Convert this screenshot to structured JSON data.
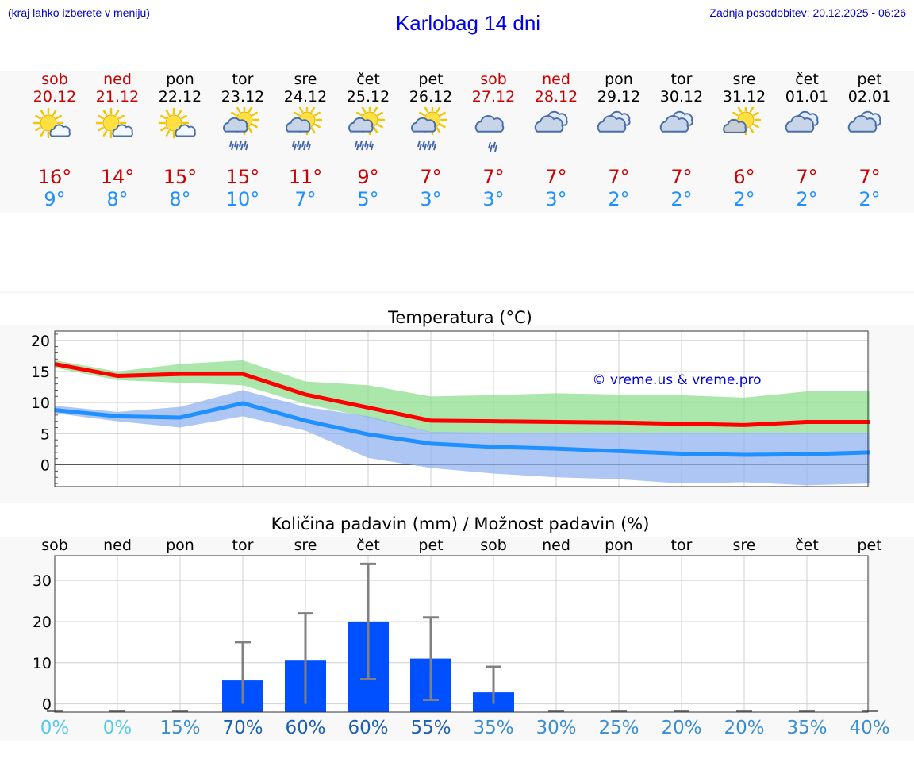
{
  "header": {
    "hint": "(kraj lahko izberete v meniju)",
    "title": "Karlobag 14 dni",
    "updated": "Zadnja posodobitev: 20.12.2025 - 06:26"
  },
  "days": [
    {
      "name": "sob",
      "date": "20.12",
      "weekend": true,
      "icon": "sun-cloud-icon",
      "tmax": "16°",
      "tmin": "9°"
    },
    {
      "name": "ned",
      "date": "21.12",
      "weekend": true,
      "icon": "sun-cloud-icon",
      "tmax": "14°",
      "tmin": "8°"
    },
    {
      "name": "pon",
      "date": "22.12",
      "weekend": false,
      "icon": "sun-cloud-icon",
      "tmax": "15°",
      "tmin": "8°"
    },
    {
      "name": "tor",
      "date": "23.12",
      "weekend": false,
      "icon": "sun-rain-icon",
      "tmax": "15°",
      "tmin": "10°"
    },
    {
      "name": "sre",
      "date": "24.12",
      "weekend": false,
      "icon": "sun-rain-icon",
      "tmax": "11°",
      "tmin": "7°"
    },
    {
      "name": "čet",
      "date": "25.12",
      "weekend": false,
      "icon": "sun-rain-icon",
      "tmax": "9°",
      "tmin": "5°"
    },
    {
      "name": "pet",
      "date": "26.12",
      "weekend": false,
      "icon": "sun-rain-icon",
      "tmax": "7°",
      "tmin": "3°"
    },
    {
      "name": "sob",
      "date": "27.12",
      "weekend": true,
      "icon": "cloud-drizzle-icon",
      "tmax": "7°",
      "tmin": "3°"
    },
    {
      "name": "ned",
      "date": "28.12",
      "weekend": true,
      "icon": "cloud-icon",
      "tmax": "7°",
      "tmin": "3°"
    },
    {
      "name": "pon",
      "date": "29.12",
      "weekend": false,
      "icon": "cloud-icon",
      "tmax": "7°",
      "tmin": "2°"
    },
    {
      "name": "tor",
      "date": "30.12",
      "weekend": false,
      "icon": "cloud-icon",
      "tmax": "7°",
      "tmin": "2°"
    },
    {
      "name": "sre",
      "date": "31.12",
      "weekend": false,
      "icon": "sun-cloud-grey-icon",
      "tmax": "6°",
      "tmin": "2°"
    },
    {
      "name": "čet",
      "date": "01.01",
      "weekend": false,
      "icon": "cloud-icon",
      "tmax": "7°",
      "tmin": "2°"
    },
    {
      "name": "pet",
      "date": "02.01",
      "weekend": false,
      "icon": "cloud-icon",
      "tmax": "7°",
      "tmin": "2°"
    }
  ],
  "colors": {
    "max_line": "#ff0000",
    "min_line": "#1e90ff",
    "max_band": "#8fdf8f",
    "min_band": "#8fb0f0",
    "bar": "#0050ff",
    "error": "#808080"
  },
  "chart_data": [
    {
      "type": "line",
      "title": "Temperatura (°C)",
      "watermark": "© vreme.us & vreme.pro",
      "ylim": [
        -3.5,
        21.5
      ],
      "yticks": [
        "0",
        "5",
        "10",
        "15",
        "20"
      ],
      "x": [
        0,
        1,
        2,
        3,
        4,
        5,
        6,
        7,
        8,
        9,
        10,
        11,
        12,
        13
      ],
      "series": [
        {
          "name": "max",
          "values": [
            16.2,
            14.3,
            14.6,
            14.6,
            11.3,
            9.2,
            7.1,
            7.0,
            6.9,
            6.8,
            6.6,
            6.4,
            6.9,
            6.9
          ],
          "band_low": [
            15.6,
            13.6,
            13.2,
            12.8,
            9.8,
            7.6,
            5.2,
            5.2,
            5.2,
            5.2,
            5.2,
            5.2,
            5.2,
            5.2
          ],
          "band_high": [
            16.8,
            15.0,
            16.2,
            16.8,
            13.4,
            12.8,
            11.0,
            11.2,
            11.5,
            11.3,
            11.2,
            10.8,
            11.8,
            11.8
          ]
        },
        {
          "name": "min",
          "values": [
            8.8,
            7.8,
            7.6,
            9.9,
            7.1,
            4.9,
            3.4,
            2.9,
            2.6,
            2.2,
            1.8,
            1.6,
            1.7,
            2.0
          ],
          "band_low": [
            8.3,
            7.0,
            6.0,
            7.8,
            5.5,
            1.1,
            -0.5,
            -1.4,
            -2.0,
            -2.3,
            -3.0,
            -2.8,
            -3.3,
            -3.0
          ],
          "band_high": [
            9.5,
            8.5,
            9.3,
            12.0,
            9.3,
            7.8,
            5.3,
            5.2,
            5.2,
            5.2,
            5.2,
            5.2,
            5.2,
            5.2
          ]
        }
      ]
    },
    {
      "type": "bar",
      "title": "Količina padavin (mm) / Možnost padavin (%)",
      "categories": [
        "sob",
        "ned",
        "pon",
        "tor",
        "sre",
        "čet",
        "pet",
        "sob",
        "ned",
        "pon",
        "tor",
        "sre",
        "čet",
        "pet"
      ],
      "values": [
        0,
        0,
        0,
        5.7,
        10.5,
        20,
        11,
        2.8,
        0,
        0,
        0,
        0,
        0,
        0
      ],
      "err_low": [
        0,
        0,
        0,
        0,
        0,
        6,
        1,
        0,
        0,
        0,
        0,
        0,
        0,
        0
      ],
      "err_high": [
        0,
        0,
        0,
        15,
        22,
        34,
        21,
        9,
        0,
        0,
        0,
        0,
        0,
        0
      ],
      "ylim": [
        -2,
        36
      ],
      "yticks": [
        "0",
        "10",
        "20",
        "30"
      ],
      "probabilities": [
        "0%",
        "0%",
        "15%",
        "70%",
        "60%",
        "60%",
        "55%",
        "35%",
        "30%",
        "25%",
        "20%",
        "20%",
        "35%",
        "40%"
      ],
      "probability_values": [
        0,
        0,
        15,
        70,
        60,
        60,
        55,
        35,
        30,
        25,
        20,
        20,
        35,
        40
      ]
    }
  ]
}
